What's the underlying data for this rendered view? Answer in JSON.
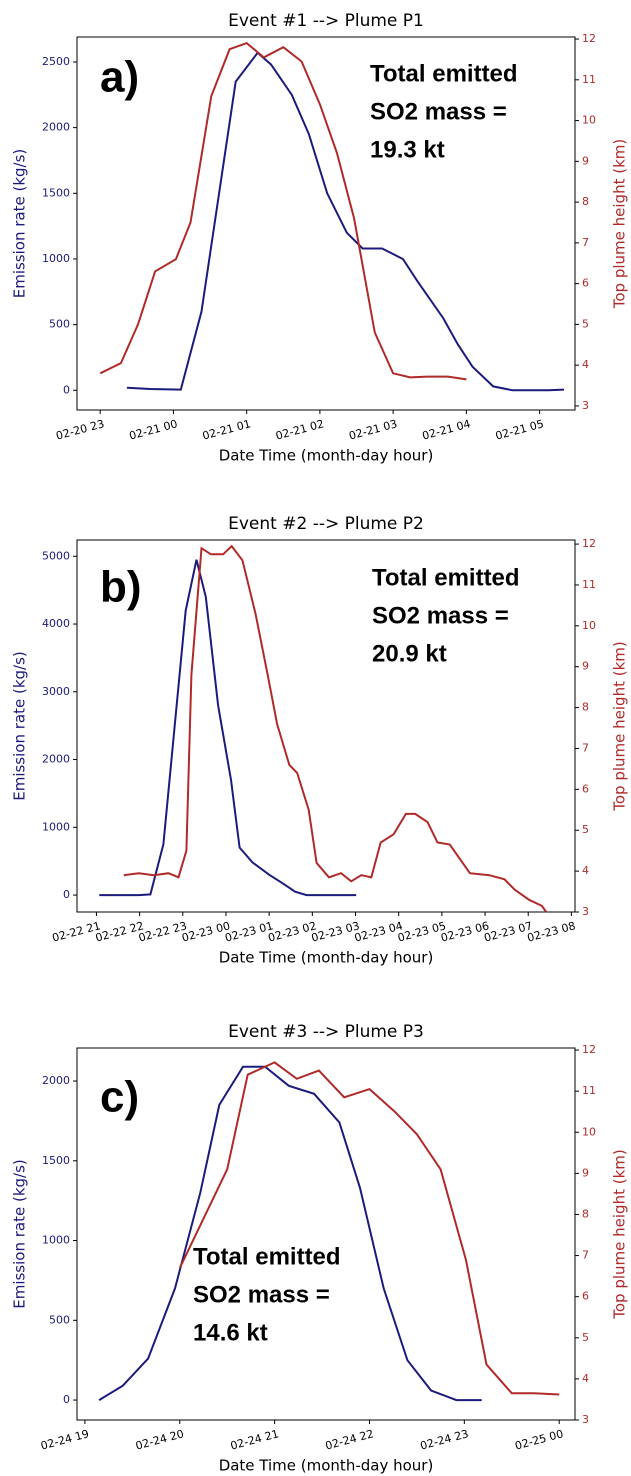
{
  "chart_data": [
    {
      "type": "line",
      "title": "Event #1 --> Plume P1",
      "xlabel": "Date Time (month-day hour)",
      "ylabel": "Emission rate (kg/s)",
      "y2label": "Top plume height (km)",
      "panel_label": "a)",
      "annotations": [
        "Total emitted",
        "SO2 mass =",
        "19.3 kt"
      ],
      "xlim": [
        "02-20 22:41",
        "02-21 05:29"
      ],
      "xticks": [
        {
          "value": "02-20 23:00",
          "label": "02-20 23"
        },
        {
          "value": "02-21 00:00",
          "label": "02-21 00"
        },
        {
          "value": "02-21 01:00",
          "label": "02-21 01"
        },
        {
          "value": "02-21 02:00",
          "label": "02-21 02"
        },
        {
          "value": "02-21 03:00",
          "label": "02-21 03"
        },
        {
          "value": "02-21 04:00",
          "label": "02-21 04"
        },
        {
          "value": "02-21 05:00",
          "label": "02-21 05"
        }
      ],
      "ylim": [
        -150,
        2690
      ],
      "yticks": [
        0,
        500,
        1000,
        1500,
        2000,
        2500
      ],
      "y2lim": [
        2.9,
        12.05
      ],
      "y2ticks": [
        3,
        4,
        5,
        6,
        7,
        8,
        9,
        10,
        11,
        12
      ],
      "series": [
        {
          "color": "#1b1b7d",
          "x": [
            "02-20 23:22",
            "02-20 23:41",
            "02-21 00:06",
            "02-21 00:23",
            "02-21 00:51",
            "02-21 01:09",
            "02-21 01:20",
            "02-21 01:37",
            "02-21 01:51",
            "02-21 02:06",
            "02-21 02:22",
            "02-21 02:35",
            "02-21 02:51",
            "02-21 03:08",
            "02-21 03:20",
            "02-21 03:41",
            "02-21 03:53",
            "02-21 04:05",
            "02-21 04:22",
            "02-21 04:38",
            "02-21 05:07",
            "02-21 05:20"
          ],
          "values": [
            20,
            10,
            5,
            600,
            2350,
            2570,
            2480,
            2250,
            1950,
            1500,
            1200,
            1080,
            1080,
            1000,
            830,
            550,
            350,
            180,
            30,
            0,
            0,
            5
          ]
        },
        {
          "color": "#b02a2a",
          "axis": "y2",
          "x": [
            "02-20 23:00",
            "02-20 23:17",
            "02-20 23:31",
            "02-20 23:45",
            "02-21 00:02",
            "02-21 00:14",
            "02-21 00:31",
            "02-21 00:46",
            "02-21 01:00",
            "02-21 01:14",
            "02-21 01:30",
            "02-21 01:45",
            "02-21 02:00",
            "02-21 02:14",
            "02-21 02:28",
            "02-21 02:45",
            "02-21 03:00",
            "02-21 03:14",
            "02-21 03:28",
            "02-21 03:45",
            "02-21 04:00"
          ],
          "values": [
            3.8,
            4.05,
            5.0,
            6.3,
            6.6,
            7.5,
            10.6,
            11.75,
            11.9,
            11.55,
            11.8,
            11.45,
            10.4,
            9.2,
            7.6,
            4.8,
            3.8,
            3.7,
            3.72,
            3.72,
            3.65
          ]
        }
      ]
    },
    {
      "type": "line",
      "title": "Event #2 --> Plume P2",
      "xlabel": "Date Time (month-day hour)",
      "ylabel": "Emission rate (kg/s)",
      "y2label": "Top plume height (km)",
      "panel_label": "b)",
      "annotations": [
        "Total emitted",
        "SO2 mass =",
        "20.9 kt"
      ],
      "xlim": [
        "02-22 20:33",
        "02-23 08:05"
      ],
      "xticks": [
        {
          "value": "02-22 21:00",
          "label": "02-22 21"
        },
        {
          "value": "02-22 22:00",
          "label": "02-22 22"
        },
        {
          "value": "02-22 23:00",
          "label": "02-22 23"
        },
        {
          "value": "02-23 00:00",
          "label": "02-23 00"
        },
        {
          "value": "02-23 01:00",
          "label": "02-23 01"
        },
        {
          "value": "02-23 02:00",
          "label": "02-23 02"
        },
        {
          "value": "02-23 03:00",
          "label": "02-23 03"
        },
        {
          "value": "02-23 04:00",
          "label": "02-23 04"
        },
        {
          "value": "02-23 05:00",
          "label": "02-23 05"
        },
        {
          "value": "02-23 06:00",
          "label": "02-23 06"
        },
        {
          "value": "02-23 07:00",
          "label": "02-23 07"
        },
        {
          "value": "02-23 08:00",
          "label": "02-23 08"
        }
      ],
      "ylim": [
        -250,
        5240
      ],
      "yticks": [
        0,
        1000,
        2000,
        3000,
        4000,
        5000
      ],
      "y2lim": [
        3,
        12.1
      ],
      "y2ticks": [
        3,
        4,
        5,
        6,
        7,
        8,
        9,
        10,
        11,
        12
      ],
      "series": [
        {
          "color": "#1b1b7d",
          "x": [
            "02-22 21:04",
            "02-22 21:59",
            "02-22 22:15",
            "02-22 22:33",
            "02-22 23:04",
            "02-22 23:19",
            "02-22 23:32",
            "02-22 23:49",
            "02-23 00:07",
            "02-23 00:19",
            "02-23 00:37",
            "02-23 01:00",
            "02-23 01:18",
            "02-23 01:36",
            "02-23 01:52",
            "02-23 03:01"
          ],
          "values": [
            0,
            0,
            10,
            750,
            4200,
            4950,
            4400,
            2800,
            1700,
            700,
            480,
            300,
            180,
            50,
            0,
            0
          ]
        },
        {
          "color": "#b02a2a",
          "axis": "y2",
          "x": [
            "02-22 21:38",
            "02-22 21:59",
            "02-22 22:20",
            "02-22 22:40",
            "02-22 22:54",
            "02-22 23:05",
            "02-22 23:12",
            "02-22 23:26",
            "02-22 23:39",
            "02-22 23:56",
            "02-23 00:08",
            "02-23 00:23",
            "02-23 00:41",
            "02-23 00:58",
            "02-23 01:11",
            "02-23 01:28",
            "02-23 01:39",
            "02-23 01:55",
            "02-23 02:06",
            "02-23 02:23",
            "02-23 02:40",
            "02-23 02:54",
            "02-23 03:08",
            "02-23 03:22",
            "02-23 03:35",
            "02-23 03:53",
            "02-23 04:10",
            "02-23 04:23",
            "02-23 04:40",
            "02-23 04:54",
            "02-23 05:11",
            "02-23 05:39",
            "02-23 06:06",
            "02-23 06:27",
            "02-23 06:41",
            "02-23 07:01",
            "02-23 07:19",
            "02-23 07:25"
          ],
          "values": [
            3.9,
            3.95,
            3.9,
            3.95,
            3.85,
            4.5,
            8.8,
            11.9,
            11.75,
            11.75,
            11.95,
            11.6,
            10.3,
            8.8,
            7.6,
            6.6,
            6.4,
            5.5,
            4.2,
            3.85,
            3.95,
            3.75,
            3.9,
            3.85,
            4.7,
            4.9,
            5.4,
            5.4,
            5.2,
            4.7,
            4.65,
            3.95,
            3.9,
            3.8,
            3.55,
            3.3,
            3.15,
            3.0
          ]
        }
      ]
    },
    {
      "type": "line",
      "title": "Event #3 --> Plume P3",
      "xlabel": "Date Time (month-day hour)",
      "ylabel": "Emission rate (kg/s)",
      "y2label": "Top plume height (km)",
      "panel_label": "c)",
      "annotations": [
        "Total emitted",
        "SO2 mass =",
        "14.6 kt"
      ],
      "xlim": [
        "02-24 18:55",
        "02-25 00:10"
      ],
      "xticks": [
        {
          "value": "02-24 19:00",
          "label": "02-24 19"
        },
        {
          "value": "02-24 20:00",
          "label": "02-24 20"
        },
        {
          "value": "02-24 21:00",
          "label": "02-24 21"
        },
        {
          "value": "02-24 22:00",
          "label": "02-24 22"
        },
        {
          "value": "02-24 23:00",
          "label": "02-24 23"
        },
        {
          "value": "02-25 00:00",
          "label": "02-25 00"
        }
      ],
      "ylim": [
        -125,
        2207
      ],
      "yticks": [
        0,
        500,
        1000,
        1500,
        2000
      ],
      "y2lim": [
        3,
        12.05
      ],
      "y2ticks": [
        3,
        4,
        5,
        6,
        7,
        8,
        9,
        10,
        11,
        12
      ],
      "series": [
        {
          "color": "#1b1b7d",
          "x": [
            "02-24 19:09",
            "02-24 19:24",
            "02-24 19:40",
            "02-24 19:57",
            "02-24 20:13",
            "02-24 20:25",
            "02-24 20:40",
            "02-24 20:54",
            "02-24 21:09",
            "02-24 21:25",
            "02-24 21:41",
            "02-24 21:54",
            "02-24 22:09",
            "02-24 22:24",
            "02-24 22:39",
            "02-24 22:55",
            "02-24 23:11"
          ],
          "values": [
            0,
            90,
            260,
            700,
            1300,
            1850,
            2090,
            2090,
            1970,
            1920,
            1740,
            1330,
            700,
            250,
            60,
            0,
            0
          ]
        },
        {
          "color": "#b02a2a",
          "axis": "y2",
          "x": [
            "02-24 20:00",
            "02-24 20:30",
            "02-24 20:43",
            "02-24 21:00",
            "02-24 21:14",
            "02-24 21:28",
            "02-24 21:44",
            "02-24 22:00",
            "02-24 22:16",
            "02-24 22:30",
            "02-24 22:45",
            "02-24 23:01",
            "02-24 23:14",
            "02-24 23:30",
            "02-24 23:44",
            "02-25 00:00"
          ],
          "values": [
            6.7,
            9.1,
            11.4,
            11.7,
            11.3,
            11.5,
            10.85,
            11.05,
            10.5,
            9.95,
            9.1,
            6.9,
            4.35,
            3.65,
            3.65,
            3.62
          ]
        }
      ]
    }
  ]
}
